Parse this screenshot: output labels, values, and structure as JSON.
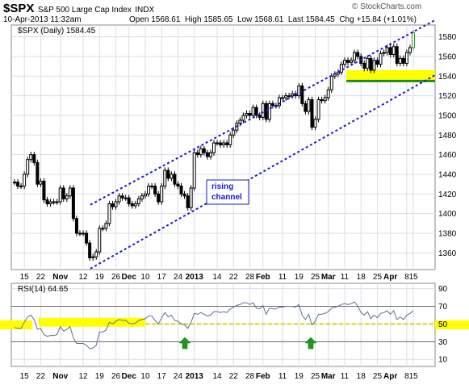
{
  "header": {
    "symbol": "$SPX",
    "name": "S&P 500 Large Cap Index",
    "exchange": "INDX",
    "date": "10-Apr-2013 11:32am",
    "watermark": "© StockCharts.com",
    "open_label": "Open",
    "open": "1568.61",
    "high_label": "High",
    "high": "1585.65",
    "low_label": "Low",
    "low": "1568.61",
    "last_label": "Last",
    "last": "1584.45",
    "chg_label": "Chg",
    "chg": "+15.84 (+1.01%)"
  },
  "price_legend": "$SPX (Daily) 1584.45",
  "rsi_legend": "RSI(14) 64.65",
  "annotation": "rising\nchannel",
  "colors": {
    "background": "#ffffff",
    "panel_bg": "#ffffff",
    "grid": "#d9dde6",
    "frame": "#8a8a8a",
    "channel": "#1a1acc",
    "highlight": "#ffff00",
    "support_line": "#1a8a2a",
    "rsi_line": "#5f6f8f",
    "up_candle": "#20a020",
    "arrow": "#1a9a1a"
  },
  "x_ticks": [
    "15",
    "22",
    "Nov",
    "12",
    "19",
    "26",
    "Dec",
    "10",
    "17",
    "24",
    "2013",
    "14",
    "22",
    "28",
    "Feb",
    "11",
    "19",
    "25",
    "Mar",
    "11",
    "18",
    "25",
    "Apr",
    "8",
    "15"
  ],
  "chart_data": [
    {
      "type": "candlestick",
      "title": "$SPX (Daily) 1584.45",
      "y_ticks": [
        1360,
        1380,
        1400,
        1420,
        1440,
        1460,
        1480,
        1500,
        1520,
        1540,
        1560,
        1580
      ],
      "ylim": [
        1343,
        1592
      ],
      "dates": [
        "10-10",
        "10-11",
        "10-12",
        "10-15",
        "10-16",
        "10-17",
        "10-18",
        "10-19",
        "10-22",
        "10-23",
        "10-24",
        "10-25",
        "10-26",
        "10-31",
        "11-01",
        "11-02",
        "11-05",
        "11-06",
        "11-07",
        "11-08",
        "11-09",
        "11-12",
        "11-13",
        "11-14",
        "11-15",
        "11-16",
        "11-19",
        "11-20",
        "11-21",
        "11-23",
        "11-26",
        "11-27",
        "11-28",
        "11-29",
        "11-30",
        "12-03",
        "12-04",
        "12-05",
        "12-06",
        "12-07",
        "12-10",
        "12-11",
        "12-12",
        "12-13",
        "12-14",
        "12-17",
        "12-18",
        "12-19",
        "12-20",
        "12-21",
        "12-24",
        "12-26",
        "12-27",
        "12-28",
        "12-31",
        "01-02",
        "01-03",
        "01-04",
        "01-07",
        "01-08",
        "01-09",
        "01-10",
        "01-11",
        "01-14",
        "01-15",
        "01-16",
        "01-17",
        "01-18",
        "01-22",
        "01-23",
        "01-24",
        "01-25",
        "01-28",
        "01-29",
        "01-30",
        "01-31",
        "02-01",
        "02-04",
        "02-05",
        "02-06",
        "02-07",
        "02-08",
        "02-11",
        "02-12",
        "02-13",
        "02-14",
        "02-15",
        "02-19",
        "02-20",
        "02-21",
        "02-22",
        "02-25",
        "02-26",
        "02-27",
        "02-28",
        "03-01",
        "03-04",
        "03-05",
        "03-06",
        "03-07",
        "03-08",
        "03-11",
        "03-12",
        "03-13",
        "03-14",
        "03-15",
        "03-18",
        "03-19",
        "03-20",
        "03-21",
        "03-22",
        "03-25",
        "03-26",
        "03-27",
        "03-28",
        "04-01",
        "04-02",
        "04-03",
        "04-04",
        "04-05",
        "04-08",
        "04-09",
        "04-10"
      ],
      "close": [
        1432,
        1428,
        1428,
        1440,
        1455,
        1460,
        1452,
        1430,
        1433,
        1414,
        1410,
        1412,
        1412,
        1412,
        1426,
        1415,
        1418,
        1426,
        1395,
        1380,
        1380,
        1380,
        1370,
        1355,
        1356,
        1361,
        1385,
        1385,
        1390,
        1410,
        1407,
        1412,
        1418,
        1416,
        1416,
        1410,
        1408,
        1410,
        1415,
        1418,
        1420,
        1428,
        1428,
        1420,
        1412,
        1428,
        1444,
        1436,
        1440,
        1430,
        1428,
        1420,
        1418,
        1406,
        1426,
        1462,
        1460,
        1466,
        1462,
        1458,
        1462,
        1472,
        1472,
        1470,
        1472,
        1470,
        1480,
        1485,
        1492,
        1495,
        1500,
        1502,
        1500,
        1508,
        1500,
        1498,
        1512,
        1496,
        1512,
        1510,
        1510,
        1518,
        1518,
        1520,
        1520,
        1522,
        1520,
        1530,
        1512,
        1504,
        1516,
        1488,
        1496,
        1516,
        1515,
        1518,
        1526,
        1540,
        1542,
        1544,
        1552,
        1556,
        1554,
        1556,
        1564,
        1560,
        1553,
        1548,
        1558,
        1546,
        1556,
        1552,
        1563,
        1564,
        1569,
        1562,
        1570,
        1553,
        1558,
        1553,
        1564,
        1569,
        1584
      ],
      "rsi": {
        "y_ticks": [
          10,
          30,
          50,
          70,
          90
        ],
        "ylim": [
          2,
          96
        ],
        "overbought": 70,
        "oversold": 30,
        "values": [
          46,
          45,
          45,
          52,
          58,
          60,
          55,
          44,
          45,
          38,
          36,
          37,
          37,
          38,
          47,
          42,
          44,
          47,
          34,
          28,
          28,
          28,
          26,
          22,
          23,
          26,
          41,
          41,
          43,
          52,
          50,
          53,
          55,
          54,
          54,
          51,
          50,
          51,
          54,
          55,
          56,
          59,
          59,
          54,
          50,
          57,
          63,
          58,
          60,
          54,
          53,
          50,
          49,
          45,
          52,
          62,
          61,
          63,
          61,
          59,
          60,
          64,
          64,
          63,
          64,
          63,
          67,
          69,
          71,
          72,
          74,
          74,
          72,
          74,
          68,
          67,
          71,
          61,
          68,
          67,
          67,
          69,
          69,
          70,
          70,
          70,
          69,
          72,
          60,
          55,
          61,
          49,
          53,
          61,
          61,
          62,
          64,
          68,
          69,
          70,
          72,
          73,
          72,
          73,
          75,
          70,
          63,
          60,
          64,
          56,
          60,
          57,
          62,
          63,
          65,
          61,
          65,
          55,
          58,
          55,
          60,
          62,
          65
        ]
      }
    }
  ]
}
